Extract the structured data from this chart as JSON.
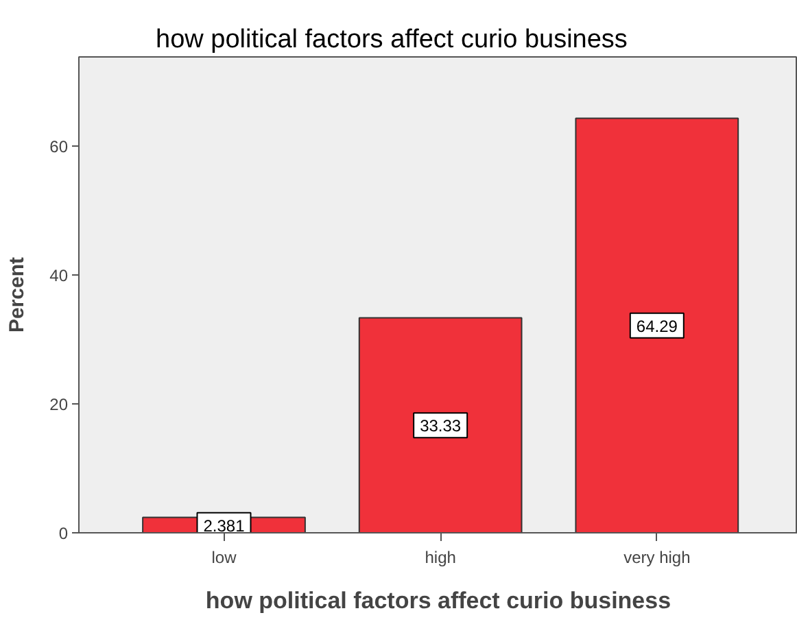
{
  "chart_data": {
    "type": "bar",
    "title": "how political factors affect curio business",
    "xlabel": "how political factors affect curio business",
    "ylabel": "Percent",
    "categories": [
      "low",
      "high",
      "very high"
    ],
    "values": [
      2.381,
      33.33,
      64.29
    ],
    "color": "#f0313a",
    "ylim": [
      0,
      73.8
    ],
    "yticks": [
      0,
      20,
      40,
      60
    ],
    "grid": false,
    "data_labels": true
  }
}
